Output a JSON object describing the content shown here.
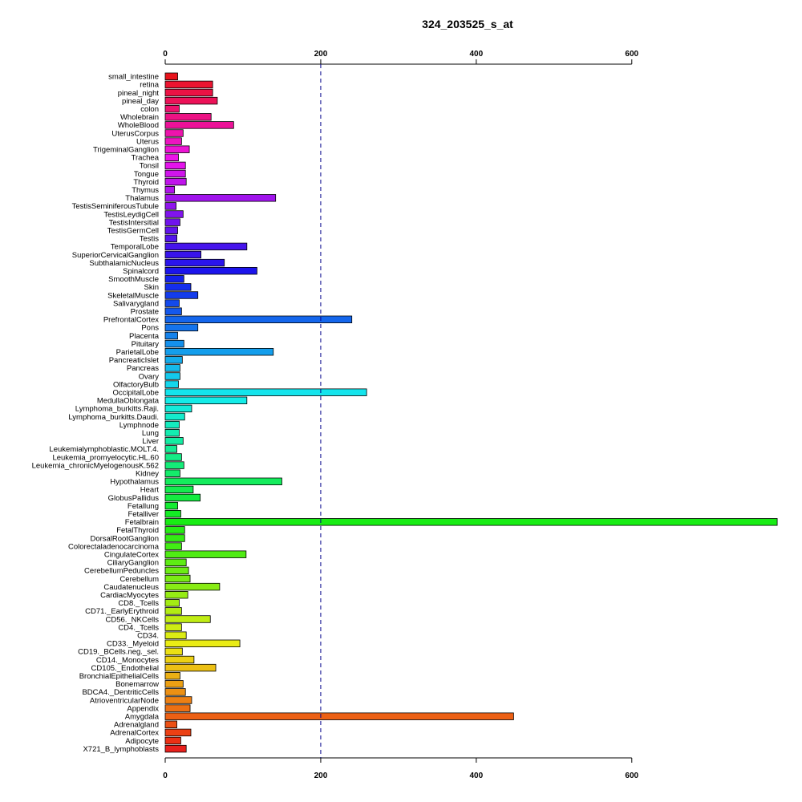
{
  "chart_data": {
    "type": "bar",
    "orientation": "horizontal",
    "title": "324_203525_s_at",
    "xlabel": "",
    "ylabel": "",
    "xlim": [
      0,
      790
    ],
    "xticks": [
      0,
      200,
      400,
      600
    ],
    "reference_line": 200,
    "grid": false,
    "categories": [
      "small_intestine",
      "retina",
      "pineal_night",
      "pineal_day",
      "colon",
      "Wholebrain",
      "WholeBlood",
      "UterusCorpus",
      "Uterus",
      "TrigeminalGanglion",
      "Trachea",
      "Tonsil",
      "Tongue",
      "Thyroid",
      "Thymus",
      "Thalamus",
      "TestisSeminiferousTubule",
      "TestisLeydigCell",
      "TestisIntersitial",
      "TestisGermCell",
      "Testis",
      "TemporalLobe",
      "SuperiorCervicalGanglion",
      "SubthalamicNucleus",
      "Spinalcord",
      "SmoothMuscle",
      "Skin",
      "SkeletalMuscle",
      "Salivarygland",
      "Prostate",
      "PrefrontalCortex",
      "Pons",
      "Placenta",
      "Pituitary",
      "ParietalLobe",
      "PancreaticIslet",
      "Pancreas",
      "Ovary",
      "OlfactoryBulb",
      "OccipitalLobe",
      "MedullaOblongata",
      "Lymphoma_burkitts.Raji.",
      "Lymphoma_burkitts.Daudi.",
      "Lymphnode",
      "Lung",
      "Liver",
      "Leukemialymphoblastic.MOLT.4.",
      "Leukemia_promyelocytic.HL.60",
      "Leukemia_chronicMyelogenousK.562",
      "Kidney",
      "Hypothalamus",
      "Heart",
      "GlobusPallidus",
      "Fetallung",
      "Fetalliver",
      "Fetalbrain",
      "FetalThyroid",
      "DorsalRootGanglion",
      "Colorectaladenocarcinoma",
      "CingulateCortex",
      "CiliaryGanglion",
      "CerebellumPeduncles",
      "Cerebellum",
      "Caudatenucleus",
      "CardiacMyocytes",
      "CD8._Tcells",
      "CD71._EarlyErythroid",
      "CD56._NKCells",
      "CD4._Tcells",
      "CD34.",
      "CD33._Myeloid",
      "CD19._BCells.neg._sel.",
      "CD14._Monocytes",
      "CD105._Endothelial",
      "BronchialEpithelialCells",
      "Bonemarrow",
      "BDCA4._DentriticCells",
      "AtrioventricularNode",
      "Appendix",
      "Amygdala",
      "Adrenalgland",
      "AdrenalCortex",
      "Adipocyte",
      "X721_B_lymphoblasts"
    ],
    "values": [
      16,
      61,
      61,
      67,
      18,
      59,
      88,
      23,
      21,
      31,
      17,
      26,
      26,
      27,
      12,
      142,
      14,
      23,
      19,
      16,
      15,
      105,
      46,
      76,
      118,
      24,
      33,
      42,
      18,
      21,
      240,
      42,
      16,
      24,
      139,
      22,
      19,
      19,
      17,
      259,
      105,
      34,
      25,
      18,
      18,
      23,
      15,
      21,
      24,
      19,
      150,
      36,
      45,
      16,
      20,
      787,
      25,
      25,
      21,
      104,
      27,
      30,
      32,
      70,
      29,
      18,
      21,
      58,
      21,
      27,
      96,
      22,
      37,
      65,
      19,
      23,
      26,
      34,
      32,
      448,
      15,
      33,
      20,
      27
    ],
    "colors": [
      "#e8141c",
      "#ec1430",
      "#ec1244",
      "#ec1258",
      "#ec126e",
      "#ec1284",
      "#ec1298",
      "#ec14ac",
      "#ec14c0",
      "#ec14d4",
      "#ec14e8",
      "#e414ec",
      "#d014ec",
      "#c014ec",
      "#b014ec",
      "#a014ec",
      "#9014ec",
      "#8014ec",
      "#7014ec",
      "#6214ec",
      "#5414ec",
      "#4614ec",
      "#3814ec",
      "#2a14ec",
      "#1c14ec",
      "#1420ec",
      "#142eec",
      "#143cec",
      "#144aec",
      "#1458ec",
      "#1466ec",
      "#1474ec",
      "#1482ec",
      "#1490ec",
      "#149eec",
      "#14acec",
      "#14baec",
      "#14c8ec",
      "#14d6ec",
      "#14e4ec",
      "#14ece8",
      "#14ecda",
      "#14eccc",
      "#14ecbe",
      "#14ecb0",
      "#14eca2",
      "#14ec94",
      "#14ec86",
      "#14ec78",
      "#14ec6a",
      "#14ec5c",
      "#14ec4e",
      "#14ec40",
      "#14ec32",
      "#14ec24",
      "#18ec14",
      "#26ec14",
      "#34ec14",
      "#42ec14",
      "#50ec14",
      "#5eec14",
      "#6cec14",
      "#7aec14",
      "#88ec14",
      "#96ec14",
      "#a4ec14",
      "#b2ec14",
      "#c0ec14",
      "#ceec14",
      "#dcec14",
      "#eaec14",
      "#ece014",
      "#ecd014",
      "#ecc014",
      "#ecb014",
      "#eca014",
      "#ec9014",
      "#ec8014",
      "#ec7014",
      "#ec6014",
      "#ec5014",
      "#ec4014",
      "#ec3014",
      "#e8201c"
    ]
  }
}
